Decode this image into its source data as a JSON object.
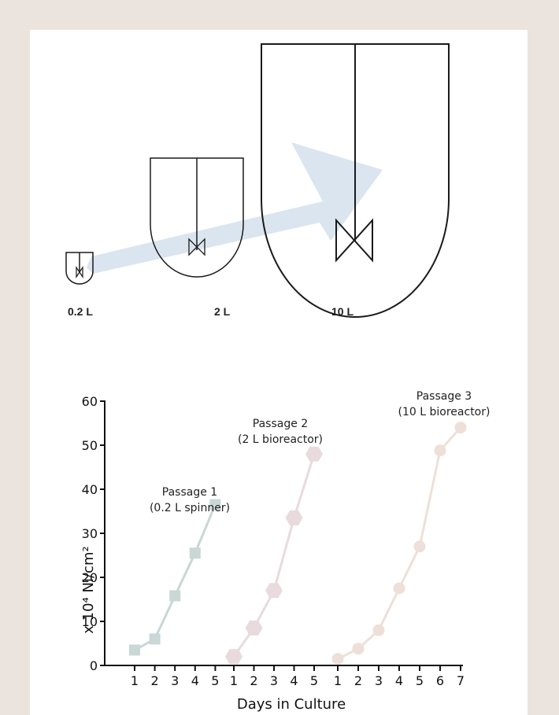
{
  "vessels": {
    "labels": [
      "0.2 L",
      "2 L",
      "10 L"
    ],
    "colors": {
      "arrow": "#d3e1ec",
      "outline": "#1a1a1a",
      "background": "#ebe3dd"
    }
  },
  "chart_data": {
    "type": "line",
    "xlabel": "Days in Culture",
    "ylabel": "x 10⁴ Ni/cm²",
    "ylim": [
      0,
      60
    ],
    "yticks": [
      0,
      10,
      20,
      30,
      40,
      50,
      60
    ],
    "grid": false,
    "series": [
      {
        "name": "Passage 1 (0.2 L spinner)",
        "label_lines": [
          "Passage 1",
          "(0.2 L spinner)"
        ],
        "marker": "square",
        "color": "#c9d7d5",
        "x": [
          1,
          2,
          3,
          4,
          5
        ],
        "y": [
          3.5,
          6,
          15.8,
          25.5,
          36.5
        ]
      },
      {
        "name": "Passage 2 (2 L bioreactor)",
        "label_lines": [
          "Passage 2",
          "(2 L bioreactor)"
        ],
        "marker": "hexagon",
        "color": "#e8dadd",
        "x": [
          1,
          2,
          3,
          4,
          5
        ],
        "y": [
          2,
          8.5,
          17,
          33.5,
          48
        ]
      },
      {
        "name": "Passage 3 (10 L bioreactor)",
        "label_lines": [
          "Passage 3",
          "(10 L bioreactor)"
        ],
        "marker": "circle",
        "color": "#ede0d8",
        "x": [
          1,
          2,
          3,
          4,
          5,
          6,
          7
        ],
        "y": [
          1.5,
          3.8,
          8,
          17.5,
          27,
          48.8,
          54
        ]
      }
    ]
  }
}
